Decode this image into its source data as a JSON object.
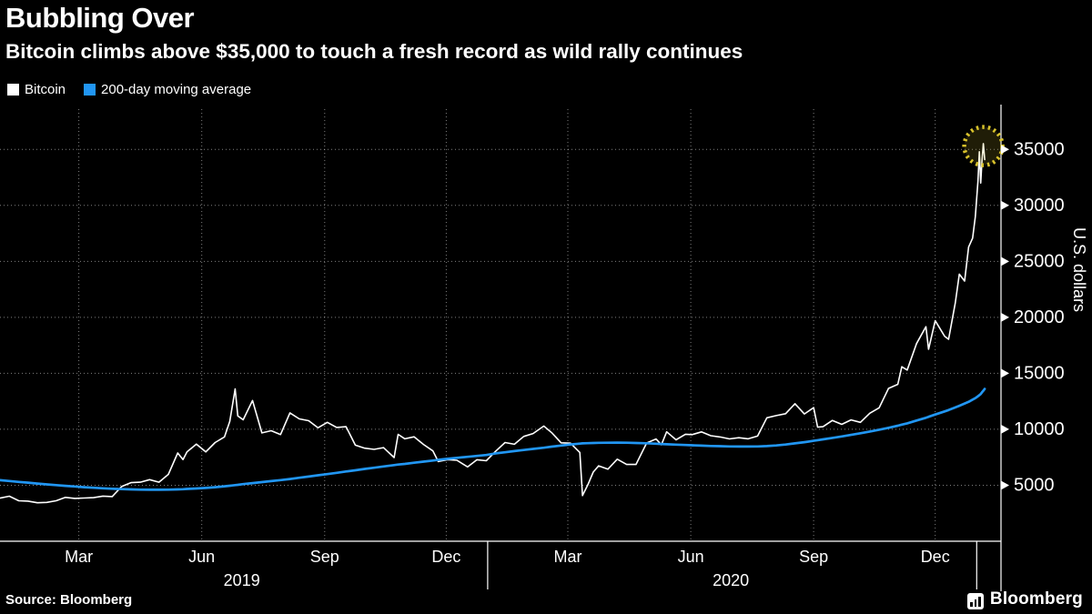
{
  "header": {
    "title": "Bubbling Over",
    "subtitle": "Bitcoin climbs above $35,000 to touch a fresh record as wild rally continues"
  },
  "legend": {
    "items": [
      {
        "label": "Bitcoin",
        "color": "#ffffff"
      },
      {
        "label": "200-day moving average",
        "color": "#2196f3"
      }
    ]
  },
  "footer": {
    "source_label": "Source: Bloomberg",
    "brand": "Bloomberg"
  },
  "chart_data": {
    "type": "line",
    "title": "Bubbling Over",
    "xlabel": "",
    "ylabel": "U.S. dollars",
    "ylim": [
      0,
      38600
    ],
    "y_ticks": [
      5000,
      10000,
      15000,
      20000,
      25000,
      30000,
      35000
    ],
    "grid": true,
    "legend_position": "top-left",
    "background": "#000000",
    "x_range": [
      "2019-01-01",
      "2021-01-09"
    ],
    "x_gridlines": [
      "2019-03-01",
      "2019-06-01",
      "2019-09-01",
      "2019-12-01",
      "2020-03-01",
      "2020-06-01",
      "2020-09-01",
      "2020-12-01"
    ],
    "x_tick_labels": [
      {
        "label": "Mar",
        "date": "2019-03-01"
      },
      {
        "label": "Jun",
        "date": "2019-06-01"
      },
      {
        "label": "Sep",
        "date": "2019-09-01"
      },
      {
        "label": "Dec",
        "date": "2019-12-01"
      },
      {
        "label": "Mar",
        "date": "2020-03-01"
      },
      {
        "label": "Jun",
        "date": "2020-06-01"
      },
      {
        "label": "Sep",
        "date": "2020-09-01"
      },
      {
        "label": "Dec",
        "date": "2020-12-01"
      }
    ],
    "year_labels": [
      {
        "label": "2019",
        "date": "2019-07-01"
      },
      {
        "label": "2020",
        "date": "2020-07-01"
      }
    ],
    "year_separators": [
      "2020-01-01",
      "2021-01-01"
    ],
    "annotation": {
      "type": "circle",
      "date": "2021-01-06",
      "value": 35300,
      "color": "#d8c22c",
      "meaning": "fresh record above $35,000"
    },
    "dates": [
      "2019-01-01",
      "2019-01-08",
      "2019-01-15",
      "2019-01-22",
      "2019-01-29",
      "2019-02-05",
      "2019-02-12",
      "2019-02-19",
      "2019-02-26",
      "2019-03-05",
      "2019-03-12",
      "2019-03-19",
      "2019-03-26",
      "2019-04-02",
      "2019-04-09",
      "2019-04-16",
      "2019-04-23",
      "2019-04-30",
      "2019-05-07",
      "2019-05-14",
      "2019-05-18",
      "2019-05-21",
      "2019-05-28",
      "2019-06-04",
      "2019-06-11",
      "2019-06-18",
      "2019-06-22",
      "2019-06-26",
      "2019-06-28",
      "2019-07-02",
      "2019-07-09",
      "2019-07-16",
      "2019-07-23",
      "2019-07-30",
      "2019-08-06",
      "2019-08-13",
      "2019-08-20",
      "2019-08-27",
      "2019-09-03",
      "2019-09-10",
      "2019-09-17",
      "2019-09-24",
      "2019-10-01",
      "2019-10-08",
      "2019-10-15",
      "2019-10-23",
      "2019-10-26",
      "2019-10-31",
      "2019-11-07",
      "2019-11-14",
      "2019-11-21",
      "2019-11-25",
      "2019-12-02",
      "2019-12-09",
      "2019-12-17",
      "2019-12-24",
      "2019-12-31",
      "2020-01-07",
      "2020-01-14",
      "2020-01-21",
      "2020-01-28",
      "2020-02-04",
      "2020-02-12",
      "2020-02-18",
      "2020-02-25",
      "2020-03-03",
      "2020-03-10",
      "2020-03-12",
      "2020-03-16",
      "2020-03-20",
      "2020-03-24",
      "2020-03-31",
      "2020-04-07",
      "2020-04-14",
      "2020-04-21",
      "2020-04-29",
      "2020-05-06",
      "2020-05-10",
      "2020-05-14",
      "2020-05-21",
      "2020-05-28",
      "2020-06-02",
      "2020-06-09",
      "2020-06-16",
      "2020-06-23",
      "2020-06-30",
      "2020-07-07",
      "2020-07-14",
      "2020-07-21",
      "2020-07-28",
      "2020-08-04",
      "2020-08-11",
      "2020-08-18",
      "2020-08-25",
      "2020-09-01",
      "2020-09-04",
      "2020-09-08",
      "2020-09-15",
      "2020-09-22",
      "2020-09-29",
      "2020-10-06",
      "2020-10-13",
      "2020-10-20",
      "2020-10-27",
      "2020-11-03",
      "2020-11-06",
      "2020-11-10",
      "2020-11-17",
      "2020-11-24",
      "2020-11-26",
      "2020-12-01",
      "2020-12-08",
      "2020-12-11",
      "2020-12-16",
      "2020-12-19",
      "2020-12-23",
      "2020-12-26",
      "2020-12-29",
      "2020-12-31",
      "2021-01-02",
      "2021-01-03",
      "2021-01-04",
      "2021-01-05",
      "2021-01-06",
      "2021-01-07"
    ],
    "series": [
      {
        "name": "Bitcoin",
        "color": "#ffffff",
        "values": [
          3850,
          4020,
          3620,
          3580,
          3440,
          3470,
          3620,
          3920,
          3830,
          3860,
          3890,
          4030,
          3990,
          4880,
          5230,
          5270,
          5500,
          5270,
          5970,
          7880,
          7300,
          7980,
          8680,
          7980,
          8820,
          9320,
          10700,
          13600,
          11200,
          10850,
          12570,
          9680,
          9870,
          9530,
          11470,
          10930,
          10770,
          10130,
          10620,
          10170,
          10230,
          8580,
          8310,
          8210,
          8360,
          7480,
          9550,
          9150,
          9330,
          8650,
          8070,
          7120,
          7290,
          7230,
          6640,
          7280,
          7190,
          8040,
          8820,
          8660,
          9360,
          9620,
          10290,
          9690,
          8790,
          8760,
          7920,
          4080,
          5050,
          6180,
          6740,
          6440,
          7330,
          6860,
          6860,
          8780,
          9130,
          8620,
          9780,
          9060,
          9560,
          9520,
          9770,
          9430,
          9310,
          9140,
          9250,
          9150,
          9390,
          11030,
          11220,
          11390,
          12290,
          11370,
          11940,
          10190,
          10230,
          10790,
          10440,
          10840,
          10620,
          11430,
          11920,
          13650,
          14020,
          15590,
          15290,
          17660,
          19160,
          17150,
          19700,
          18320,
          18040,
          21310,
          23860,
          23240,
          26280,
          27080,
          29000,
          32190,
          34800,
          32000,
          34000,
          35520,
          34100
        ]
      },
      {
        "name": "200-day moving average",
        "color": "#2196f3",
        "values": [
          5450,
          5380,
          5300,
          5230,
          5150,
          5080,
          5010,
          4950,
          4890,
          4830,
          4780,
          4730,
          4690,
          4660,
          4630,
          4610,
          4600,
          4600,
          4610,
          4630,
          4650,
          4670,
          4710,
          4760,
          4830,
          4910,
          4960,
          5010,
          5040,
          5100,
          5190,
          5280,
          5370,
          5460,
          5560,
          5670,
          5780,
          5890,
          6000,
          6110,
          6230,
          6340,
          6460,
          6570,
          6680,
          6800,
          6850,
          6910,
          7010,
          7110,
          7210,
          7270,
          7360,
          7450,
          7540,
          7620,
          7700,
          7850,
          7950,
          8050,
          8150,
          8250,
          8350,
          8450,
          8550,
          8650,
          8720,
          8740,
          8760,
          8780,
          8790,
          8800,
          8810,
          8800,
          8780,
          8750,
          8710,
          8690,
          8660,
          8630,
          8600,
          8570,
          8540,
          8510,
          8490,
          8470,
          8460,
          8460,
          8470,
          8500,
          8560,
          8640,
          8740,
          8850,
          8970,
          9030,
          9100,
          9230,
          9360,
          9500,
          9650,
          9800,
          9960,
          10130,
          10320,
          10420,
          10530,
          10780,
          11030,
          11120,
          11320,
          11600,
          11720,
          11950,
          12100,
          12300,
          12450,
          12650,
          12780,
          12950,
          13050,
          13150,
          13300,
          13450,
          13600
        ]
      }
    ]
  }
}
